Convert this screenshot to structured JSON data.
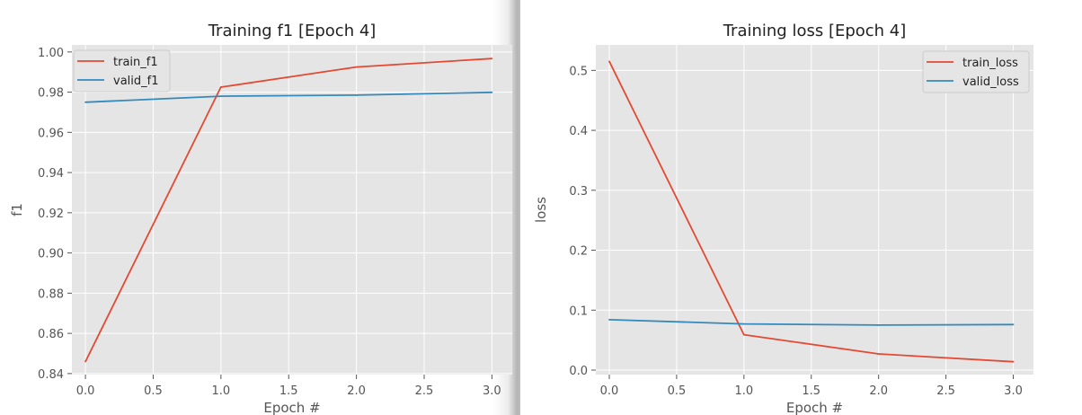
{
  "colors": {
    "train": "#e24a33",
    "valid": "#348abd",
    "panel_bg": "#e5e5e5",
    "grid": "#ffffff"
  },
  "chart_data": [
    {
      "type": "line",
      "title": "Training f1 [Epoch 4]",
      "xlabel": "Epoch #",
      "ylabel": "f1",
      "xlim": [
        -0.1,
        3.15
      ],
      "ylim": [
        0.8395,
        1.0035
      ],
      "xticks": [
        0.0,
        0.5,
        1.0,
        1.5,
        2.0,
        2.5,
        3.0
      ],
      "xtick_labels": [
        "0.0",
        "0.5",
        "1.0",
        "1.5",
        "2.0",
        "2.5",
        "3.0"
      ],
      "yticks": [
        0.84,
        0.86,
        0.88,
        0.9,
        0.92,
        0.94,
        0.96,
        0.98,
        1.0
      ],
      "ytick_labels": [
        "0.84",
        "0.86",
        "0.88",
        "0.90",
        "0.92",
        "0.94",
        "0.96",
        "0.98",
        "1.00"
      ],
      "grid": true,
      "legend_position": "upper-left",
      "x": [
        0,
        1,
        2,
        3
      ],
      "series": [
        {
          "name": "train_f1",
          "color": "#e24a33",
          "values": [
            0.846,
            0.9825,
            0.9925,
            0.9967
          ]
        },
        {
          "name": "valid_f1",
          "color": "#348abd",
          "values": [
            0.975,
            0.978,
            0.9785,
            0.9799
          ]
        }
      ]
    },
    {
      "type": "line",
      "title": "Training loss [Epoch 4]",
      "xlabel": "Epoch #",
      "ylabel": "loss",
      "xlim": [
        -0.1,
        3.15
      ],
      "ylim": [
        -0.0075,
        0.5425
      ],
      "xticks": [
        0.0,
        0.5,
        1.0,
        1.5,
        2.0,
        2.5,
        3.0
      ],
      "xtick_labels": [
        "0.0",
        "0.5",
        "1.0",
        "1.5",
        "2.0",
        "2.5",
        "3.0"
      ],
      "yticks": [
        0.0,
        0.1,
        0.2,
        0.3,
        0.4,
        0.5
      ],
      "ytick_labels": [
        "0.0",
        "0.1",
        "0.2",
        "0.3",
        "0.4",
        "0.5"
      ],
      "grid": true,
      "legend_position": "upper-right",
      "x": [
        0,
        1,
        2,
        3
      ],
      "series": [
        {
          "name": "train_loss",
          "color": "#e24a33",
          "values": [
            0.515,
            0.059,
            0.027,
            0.014
          ]
        },
        {
          "name": "valid_loss",
          "color": "#348abd",
          "values": [
            0.084,
            0.077,
            0.075,
            0.076
          ]
        }
      ]
    }
  ]
}
